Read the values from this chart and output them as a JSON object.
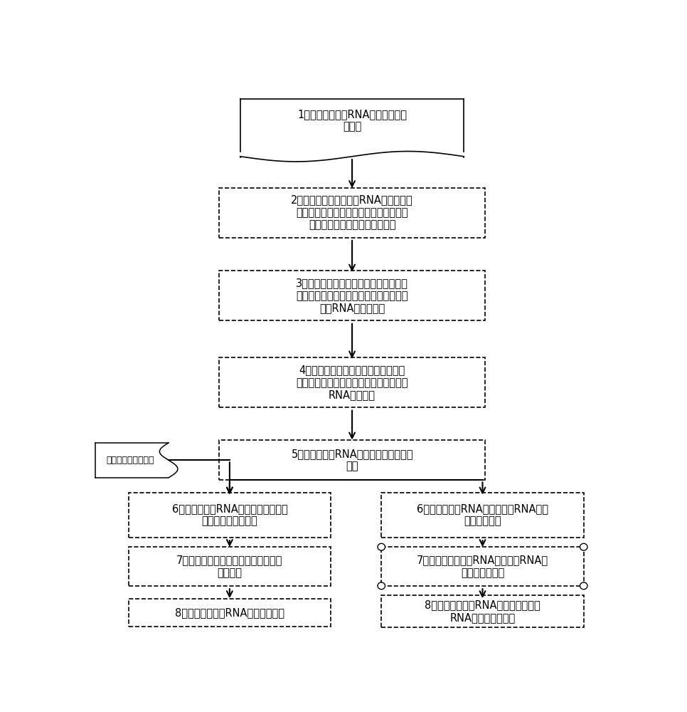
{
  "bg_color": "#ffffff",
  "box_color": "#ffffff",
  "box_edge_color": "#000000",
  "arrow_color": "#000000",
  "text_color": "#000000",
  "font_size": 10.5,
  "box1_text": "1、系统获得环状RNA高通量芯片原\n始文件",
  "box2_text": "2、系统对对所述的环状RNA高通量芯片\n原始信号文件进行质量并剔除低质量信号\n数据，获得经过筛选的信号数据",
  "box3_text": "3、系统将所述的经过筛选的数据进行前\n景值和背景值校正，得到消除噪音污染的\n环状RNA信号数据；",
  "box4_text": "4、系统将校正过的信号数据进行标准\n化，并去除极值，得到理论上有效的环状\nRNA表达值。",
  "box5_text": "5、系统对环状RNA表达谱进行差异基因\n筛选",
  "side_text": "差异基因表达谱数据",
  "box6L_text": "6、系统对环状RNA和基因的差异表达\n数据进行共表达分析",
  "box6R_text": "6、系统对环状RNA序列上的小RNA结合\n位点进行预测",
  "box7L_text": "7、系统对共表达基因进行功能注释和\n富集分析",
  "box7R_text": "7、系统对可与环状RNA结合的小RNA的\n靶基因进行预测",
  "box8L_text": "8、系统构建环状RNA功能调控网络",
  "box8R_text": "8、系统构建环状RNA作为竞争性内源\nRNA功能的调控网络"
}
